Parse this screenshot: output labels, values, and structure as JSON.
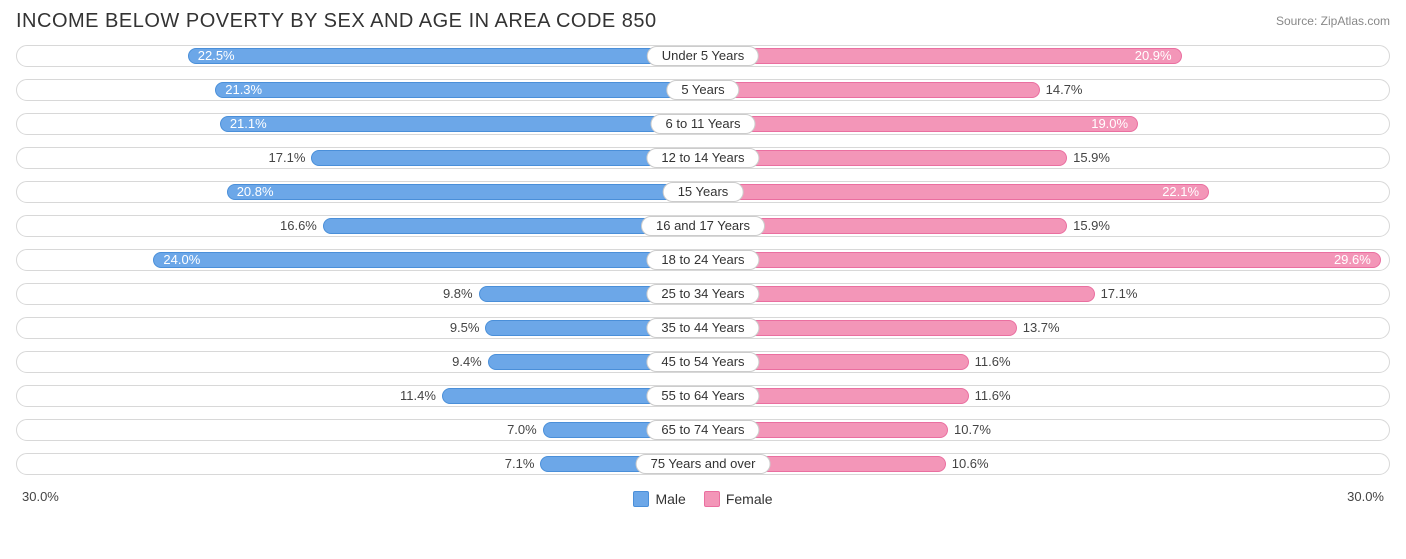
{
  "title": "INCOME BELOW POVERTY BY SEX AND AGE IN AREA CODE 850",
  "source": "Source: ZipAtlas.com",
  "axis_max": 30.0,
  "axis_label": "30.0%",
  "colors": {
    "male_fill": "#6ca7e8",
    "male_border": "#4a8fd9",
    "female_fill": "#f396b8",
    "female_border": "#ea6fa0",
    "track_border": "#d8d8d8",
    "background": "#ffffff",
    "text": "#444444",
    "label_text": "#333333"
  },
  "inside_threshold": 18.0,
  "legend": {
    "male": "Male",
    "female": "Female"
  },
  "rows": [
    {
      "category": "Under 5 Years",
      "male": 22.5,
      "female": 20.9
    },
    {
      "category": "5 Years",
      "male": 21.3,
      "female": 14.7
    },
    {
      "category": "6 to 11 Years",
      "male": 21.1,
      "female": 19.0
    },
    {
      "category": "12 to 14 Years",
      "male": 17.1,
      "female": 15.9
    },
    {
      "category": "15 Years",
      "male": 20.8,
      "female": 22.1
    },
    {
      "category": "16 and 17 Years",
      "male": 16.6,
      "female": 15.9
    },
    {
      "category": "18 to 24 Years",
      "male": 24.0,
      "female": 29.6
    },
    {
      "category": "25 to 34 Years",
      "male": 9.8,
      "female": 17.1
    },
    {
      "category": "35 to 44 Years",
      "male": 9.5,
      "female": 13.7
    },
    {
      "category": "45 to 54 Years",
      "male": 9.4,
      "female": 11.6
    },
    {
      "category": "55 to 64 Years",
      "male": 11.4,
      "female": 11.6
    },
    {
      "category": "65 to 74 Years",
      "male": 7.0,
      "female": 10.7
    },
    {
      "category": "75 Years and over",
      "male": 7.1,
      "female": 10.6
    }
  ]
}
